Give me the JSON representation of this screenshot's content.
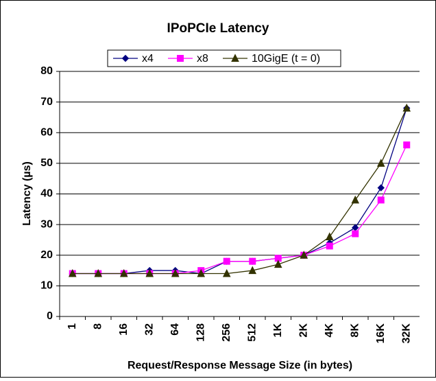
{
  "chart_data": {
    "type": "line",
    "title": "IPoPCIe Latency",
    "x_label": "Request/Response Message Size (in bytes)",
    "y_label": "Latency (µs)",
    "categories": [
      "1",
      "8",
      "16",
      "32",
      "64",
      "128",
      "256",
      "512",
      "1K",
      "2K",
      "4K",
      "8K",
      "16K",
      "32K"
    ],
    "series": [
      {
        "name": "x4",
        "color": "#000080",
        "marker": "diamond",
        "values": [
          14,
          14,
          14,
          15,
          15,
          14,
          18,
          18,
          19,
          20,
          24,
          29,
          42,
          68
        ]
      },
      {
        "name": "x8",
        "color": "#ff00ff",
        "marker": "square",
        "values": [
          14,
          14,
          14,
          14,
          14,
          15,
          18,
          18,
          19,
          20,
          23,
          27,
          38,
          56
        ]
      },
      {
        "name": "10GigE (t = 0)",
        "color": "#333300",
        "marker": "triangle",
        "values": [
          14,
          14,
          14,
          14,
          14,
          14,
          14,
          15,
          17,
          20,
          26,
          38,
          50,
          68
        ]
      }
    ],
    "ylim": [
      0,
      80
    ],
    "yticks": [
      0,
      10,
      20,
      30,
      40,
      50,
      60,
      70,
      80
    ],
    "grid": true,
    "legend": "top"
  }
}
